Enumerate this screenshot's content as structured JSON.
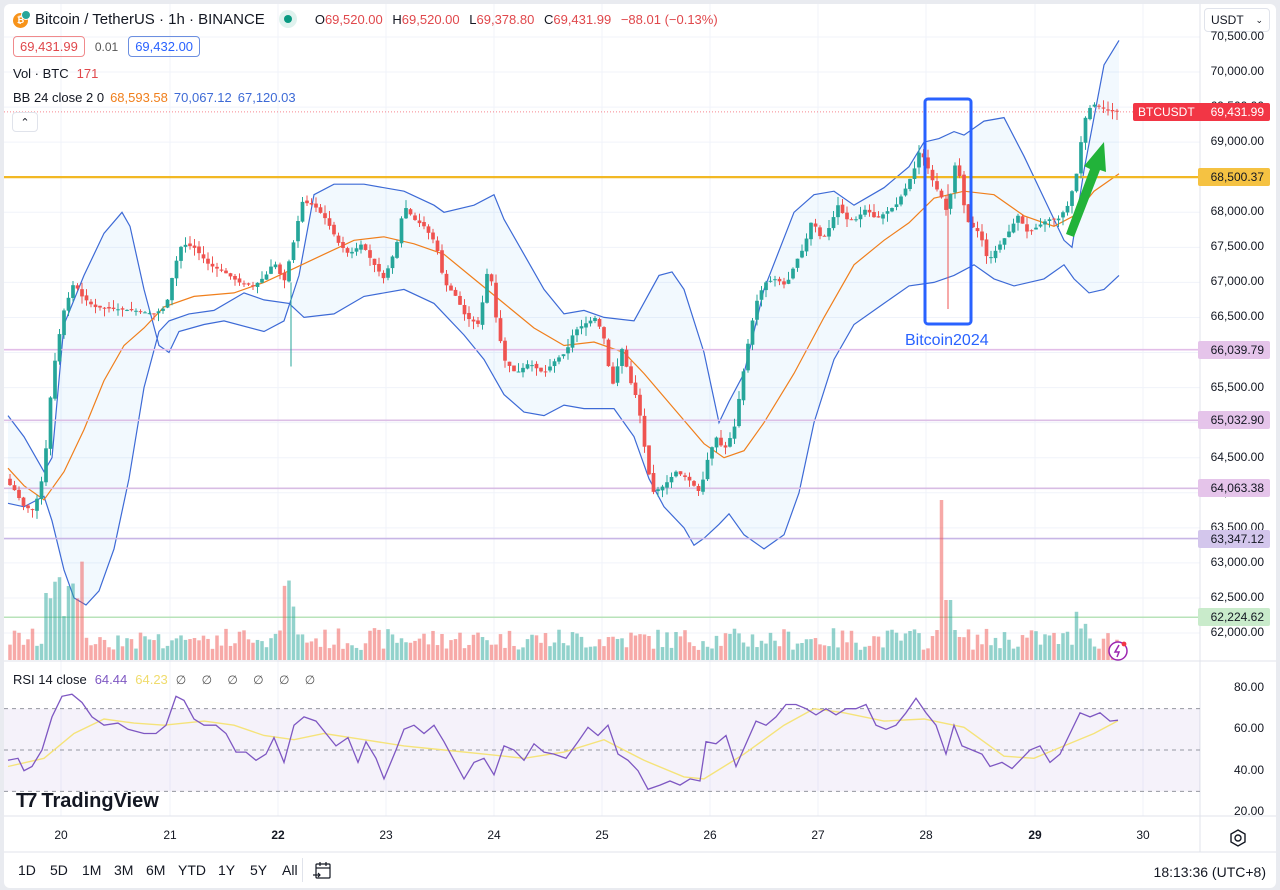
{
  "header": {
    "symbol_title": "Bitcoin / TetherUS · 1h · BINANCE",
    "ohlc": {
      "o_label": "O",
      "o": "69,520.00",
      "h_label": "H",
      "h": "69,520.00",
      "l_label": "L",
      "l": "69,378.80",
      "c_label": "C",
      "c": "69,431.99",
      "change": "−88.01 (−0.13%)"
    },
    "bid": "69,431.99",
    "spread": "0.01",
    "ask": "69,432.00",
    "volume_label": "Vol · BTC",
    "volume_value": "171",
    "bb_label": "BB 24 close 2 0",
    "bb_basis": "68,593.58",
    "bb_upper": "70,067.12",
    "bb_lower": "67,120.03",
    "collapse_icon": "chevron-up-icon"
  },
  "price_axis": {
    "currency": "USDT",
    "ticks": [
      "70,500.00",
      "70,000.00",
      "69,500.00",
      "69,000.00",
      "68,500.00",
      "68,000.00",
      "67,500.00",
      "67,000.00",
      "66,500.00",
      "66,000.00",
      "65,500.00",
      "65,000.00",
      "64,500.00",
      "64,000.00",
      "63,500.00",
      "63,000.00",
      "62,500.00",
      "62,000.00"
    ],
    "last_price_tag": {
      "symbol": "BTCUSDT",
      "price": "69,431.99",
      "color": "#f23645"
    },
    "level_tags": [
      {
        "price": "68,500.37",
        "value": 68500.37,
        "bg": "#f5c242",
        "line": "#f2b824"
      },
      {
        "price": "66,039.79",
        "value": 66039.79,
        "bg": "#e5c4ea",
        "line": "#e2bde8"
      },
      {
        "price": "65,032.90",
        "value": 65032.9,
        "bg": "#e5c4ea",
        "line": "#dcbfe6"
      },
      {
        "price": "64,063.38",
        "value": 64063.38,
        "bg": "#e5c4ea",
        "line": "#d8bde4"
      },
      {
        "price": "63,347.12",
        "value": 63347.12,
        "bg": "#d3c6ec",
        "line": "#c8b6e6"
      },
      {
        "price": "62,224.62",
        "value": 62224.62,
        "bg": "#c9ebcb",
        "line": "#b8e3ba"
      }
    ]
  },
  "annotation": {
    "label": "Bitcoin2024",
    "color": "#2962ff"
  },
  "rsi": {
    "label": "RSI 14 close",
    "value": "64.44",
    "ma_value": "64.23",
    "extra_values": [
      "∅",
      "∅",
      "∅",
      "∅",
      "∅",
      "∅"
    ],
    "ticks": [
      "80.00",
      "60.00",
      "40.00",
      "20.00"
    ]
  },
  "time_axis": {
    "labels": [
      {
        "text": "20",
        "bold": false
      },
      {
        "text": "21",
        "bold": false
      },
      {
        "text": "22",
        "bold": true
      },
      {
        "text": "23",
        "bold": false
      },
      {
        "text": "24",
        "bold": false
      },
      {
        "text": "25",
        "bold": false
      },
      {
        "text": "26",
        "bold": false
      },
      {
        "text": "27",
        "bold": false
      },
      {
        "text": "28",
        "bold": false
      },
      {
        "text": "29",
        "bold": true
      },
      {
        "text": "30",
        "bold": false
      }
    ],
    "settings_icon": "gear-icon"
  },
  "bottom_bar": {
    "ranges": [
      "1D",
      "5D",
      "1M",
      "3M",
      "6M",
      "YTD",
      "1Y",
      "5Y",
      "All"
    ],
    "goto_icon": "calendar-goto-icon",
    "clock": "18:13:36 (UTC+8)"
  },
  "watermark": "TradingView",
  "colors": {
    "up": "#26a69a",
    "down": "#ef5350",
    "bb_band": "#3d6ad6",
    "bb_basis": "#f07f1c",
    "rsi_line": "#7e57c2",
    "rsi_ma": "#f5e37a"
  },
  "chart_data": {
    "type": "candlestick",
    "title": "Bitcoin / TetherUS · 1h · BINANCE",
    "x_labels": [
      "20",
      "21",
      "22",
      "23",
      "24",
      "25",
      "26",
      "27",
      "28",
      "29",
      "30"
    ],
    "ylim": [
      61800,
      70700
    ],
    "key_closes": [
      {
        "day": "19 late",
        "price": 63900
      },
      {
        "day": "20 morning",
        "price": 66300
      },
      {
        "day": "20 midday",
        "price": 66600
      },
      {
        "day": "21",
        "price": 67300
      },
      {
        "day": "22",
        "price": 68200
      },
      {
        "day": "23",
        "price": 67700
      },
      {
        "day": "24",
        "price": 65800
      },
      {
        "day": "25",
        "price": 66100
      },
      {
        "day": "25 late",
        "price": 64200
      },
      {
        "day": "26",
        "price": 65700
      },
      {
        "day": "27",
        "price": 67900
      },
      {
        "day": "28 peak",
        "price": 69200
      },
      {
        "day": "28 low wick",
        "price": 66600
      },
      {
        "day": "29",
        "price": 67600
      },
      {
        "day": "29 late",
        "price": 69431.99
      }
    ],
    "bollinger": {
      "period": 24,
      "basis": 68593.58,
      "upper": 70067.12,
      "lower": 67120.03
    },
    "horizontal_levels": [
      68500.37,
      66039.79,
      65032.9,
      64063.38,
      63347.12,
      62224.62
    ],
    "rsi": {
      "period": 14,
      "value": 64.44,
      "ma": 64.23,
      "bands": [
        70,
        50,
        30
      ]
    }
  }
}
